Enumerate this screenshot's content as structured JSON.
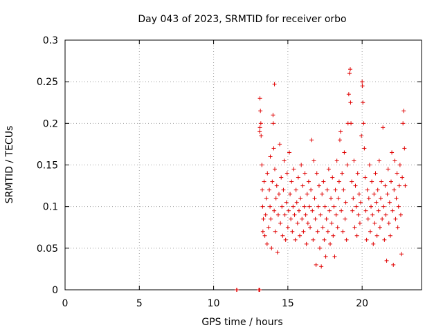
{
  "chart_data": {
    "type": "scatter",
    "title": "Day 043 of 2023, SRMTID for receiver orbo",
    "xlabel": "GPS time / hours",
    "ylabel": "SRMTID / TECUs",
    "xlim": [
      0,
      24
    ],
    "ylim": [
      0,
      0.3
    ],
    "xticks": [
      0,
      5,
      10,
      15,
      20
    ],
    "yticks": [
      0,
      0.05,
      0.1,
      0.15,
      0.2,
      0.25,
      0.3
    ],
    "xtick_labels": [
      "0",
      "5",
      "10",
      "15",
      "20"
    ],
    "ytick_labels": [
      "0",
      "0.05",
      "0.1",
      "0.15",
      "0.2",
      "0.25",
      "0.3"
    ],
    "grid": true,
    "marker": "+",
    "color": "#e00000",
    "series": [
      {
        "name": "SRMTID",
        "points": [
          [
            11.55,
            0.0
          ],
          [
            11.57,
            0.0
          ],
          [
            13.05,
            0.0
          ],
          [
            13.08,
            0.0
          ],
          [
            13.1,
            0.0
          ],
          [
            13.12,
            0.23
          ],
          [
            13.15,
            0.215
          ],
          [
            13.18,
            0.2
          ],
          [
            13.1,
            0.19
          ],
          [
            13.2,
            0.185
          ],
          [
            13.12,
            0.195
          ],
          [
            13.25,
            0.15
          ],
          [
            13.28,
            0.12
          ],
          [
            13.3,
            0.1
          ],
          [
            13.35,
            0.085
          ],
          [
            13.32,
            0.07
          ],
          [
            13.4,
            0.13
          ],
          [
            13.45,
            0.065
          ],
          [
            13.5,
            0.09
          ],
          [
            13.55,
            0.11
          ],
          [
            13.6,
            0.055
          ],
          [
            13.62,
            0.14
          ],
          [
            13.7,
            0.075
          ],
          [
            13.75,
            0.12
          ],
          [
            13.8,
            0.1
          ],
          [
            13.82,
            0.16
          ],
          [
            13.85,
            0.085
          ],
          [
            13.9,
            0.05
          ],
          [
            13.95,
            0.13
          ],
          [
            14.0,
            0.21
          ],
          [
            14.02,
            0.2
          ],
          [
            14.05,
            0.17
          ],
          [
            14.08,
            0.095
          ],
          [
            14.1,
            0.247
          ],
          [
            14.12,
            0.145
          ],
          [
            14.15,
            0.07
          ],
          [
            14.2,
            0.11
          ],
          [
            14.25,
            0.125
          ],
          [
            14.3,
            0.045
          ],
          [
            14.35,
            0.09
          ],
          [
            14.4,
            0.115
          ],
          [
            14.45,
            0.175
          ],
          [
            14.5,
            0.08
          ],
          [
            14.55,
            0.135
          ],
          [
            14.6,
            0.1
          ],
          [
            14.65,
            0.065
          ],
          [
            14.7,
            0.12
          ],
          [
            14.75,
            0.155
          ],
          [
            14.8,
            0.09
          ],
          [
            14.85,
            0.06
          ],
          [
            14.9,
            0.105
          ],
          [
            14.95,
            0.14
          ],
          [
            15.0,
            0.075
          ],
          [
            15.05,
            0.095
          ],
          [
            15.1,
            0.165
          ],
          [
            15.15,
            0.115
          ],
          [
            15.2,
            0.085
          ],
          [
            15.25,
            0.13
          ],
          [
            15.3,
            0.07
          ],
          [
            15.35,
            0.1
          ],
          [
            15.4,
            0.145
          ],
          [
            15.45,
            0.09
          ],
          [
            15.5,
            0.06
          ],
          [
            15.55,
            0.12
          ],
          [
            15.6,
            0.105
          ],
          [
            15.65,
            0.08
          ],
          [
            15.7,
            0.135
          ],
          [
            15.75,
            0.095
          ],
          [
            15.8,
            0.065
          ],
          [
            15.85,
            0.11
          ],
          [
            15.9,
            0.15
          ],
          [
            15.95,
            0.085
          ],
          [
            16.0,
            0.125
          ],
          [
            16.05,
            0.07
          ],
          [
            16.1,
            0.1
          ],
          [
            16.15,
            0.14
          ],
          [
            16.2,
            0.09
          ],
          [
            16.25,
            0.055
          ],
          [
            16.3,
            0.115
          ],
          [
            16.35,
            0.08
          ],
          [
            16.4,
            0.13
          ],
          [
            16.45,
            0.1
          ],
          [
            16.5,
            0.075
          ],
          [
            16.55,
            0.12
          ],
          [
            16.6,
            0.18
          ],
          [
            16.65,
            0.095
          ],
          [
            16.7,
            0.06
          ],
          [
            16.75,
            0.155
          ],
          [
            16.8,
            0.11
          ],
          [
            16.85,
            0.085
          ],
          [
            16.9,
            0.03
          ],
          [
            16.95,
            0.14
          ],
          [
            17.0,
            0.07
          ],
          [
            17.05,
            0.1
          ],
          [
            17.1,
            0.125
          ],
          [
            17.15,
            0.05
          ],
          [
            17.2,
            0.09
          ],
          [
            17.25,
            0.028
          ],
          [
            17.3,
            0.115
          ],
          [
            17.35,
            0.075
          ],
          [
            17.4,
            0.13
          ],
          [
            17.45,
            0.06
          ],
          [
            17.5,
            0.1
          ],
          [
            17.55,
            0.04
          ],
          [
            17.6,
            0.085
          ],
          [
            17.65,
            0.12
          ],
          [
            17.7,
            0.07
          ],
          [
            17.75,
            0.145
          ],
          [
            17.8,
            0.095
          ],
          [
            17.85,
            0.055
          ],
          [
            17.9,
            0.11
          ],
          [
            17.95,
            0.08
          ],
          [
            18.0,
            0.135
          ],
          [
            18.05,
            0.065
          ],
          [
            18.1,
            0.1
          ],
          [
            18.15,
            0.04
          ],
          [
            18.2,
            0.12
          ],
          [
            18.25,
            0.09
          ],
          [
            18.3,
            0.155
          ],
          [
            18.35,
            0.075
          ],
          [
            18.4,
            0.11
          ],
          [
            18.45,
            0.13
          ],
          [
            18.5,
            0.18
          ],
          [
            18.55,
            0.19
          ],
          [
            18.6,
            0.095
          ],
          [
            18.65,
            0.14
          ],
          [
            18.7,
            0.07
          ],
          [
            18.75,
            0.12
          ],
          [
            18.8,
            0.165
          ],
          [
            18.85,
            0.085
          ],
          [
            18.9,
            0.105
          ],
          [
            18.95,
            0.06
          ],
          [
            19.0,
            0.15
          ],
          [
            19.05,
            0.2
          ],
          [
            19.1,
            0.235
          ],
          [
            19.15,
            0.26
          ],
          [
            19.2,
            0.265
          ],
          [
            19.22,
            0.225
          ],
          [
            19.25,
            0.2
          ],
          [
            19.3,
            0.13
          ],
          [
            19.35,
            0.095
          ],
          [
            19.4,
            0.11
          ],
          [
            19.45,
            0.155
          ],
          [
            19.5,
            0.075
          ],
          [
            19.55,
            0.125
          ],
          [
            19.6,
            0.1
          ],
          [
            19.65,
            0.065
          ],
          [
            19.7,
            0.14
          ],
          [
            19.75,
            0.09
          ],
          [
            19.8,
            0.115
          ],
          [
            19.85,
            0.08
          ],
          [
            19.9,
            0.105
          ],
          [
            19.95,
            0.185
          ],
          [
            20.0,
            0.25
          ],
          [
            20.02,
            0.245
          ],
          [
            20.05,
            0.225
          ],
          [
            20.1,
            0.2
          ],
          [
            20.15,
            0.17
          ],
          [
            20.2,
            0.135
          ],
          [
            20.25,
            0.095
          ],
          [
            20.3,
            0.06
          ],
          [
            20.35,
            0.12
          ],
          [
            20.4,
            0.085
          ],
          [
            20.45,
            0.11
          ],
          [
            20.5,
            0.15
          ],
          [
            20.55,
            0.07
          ],
          [
            20.6,
            0.1
          ],
          [
            20.65,
            0.13
          ],
          [
            20.7,
            0.09
          ],
          [
            20.75,
            0.055
          ],
          [
            20.8,
            0.115
          ],
          [
            20.85,
            0.08
          ],
          [
            20.9,
            0.14
          ],
          [
            20.95,
            0.105
          ],
          [
            21.0,
            0.065
          ],
          [
            21.05,
            0.12
          ],
          [
            21.1,
            0.095
          ],
          [
            21.15,
            0.155
          ],
          [
            21.2,
            0.075
          ],
          [
            21.25,
            0.11
          ],
          [
            21.3,
            0.13
          ],
          [
            21.35,
            0.085
          ],
          [
            21.4,
            0.195
          ],
          [
            21.45,
            0.1
          ],
          [
            21.5,
            0.06
          ],
          [
            21.55,
            0.125
          ],
          [
            21.6,
            0.09
          ],
          [
            21.65,
            0.035
          ],
          [
            21.7,
            0.115
          ],
          [
            21.75,
            0.145
          ],
          [
            21.8,
            0.08
          ],
          [
            21.85,
            0.105
          ],
          [
            21.9,
            0.065
          ],
          [
            21.95,
            0.13
          ],
          [
            22.0,
            0.165
          ],
          [
            22.05,
            0.095
          ],
          [
            22.1,
            0.03
          ],
          [
            22.15,
            0.12
          ],
          [
            22.2,
            0.155
          ],
          [
            22.25,
            0.085
          ],
          [
            22.3,
            0.11
          ],
          [
            22.35,
            0.14
          ],
          [
            22.4,
            0.075
          ],
          [
            22.45,
            0.1
          ],
          [
            22.5,
            0.125
          ],
          [
            22.55,
            0.15
          ],
          [
            22.6,
            0.09
          ],
          [
            22.65,
            0.043
          ],
          [
            22.7,
            0.135
          ],
          [
            22.75,
            0.2
          ],
          [
            22.8,
            0.215
          ],
          [
            22.85,
            0.17
          ],
          [
            22.9,
            0.125
          ]
        ]
      }
    ]
  }
}
